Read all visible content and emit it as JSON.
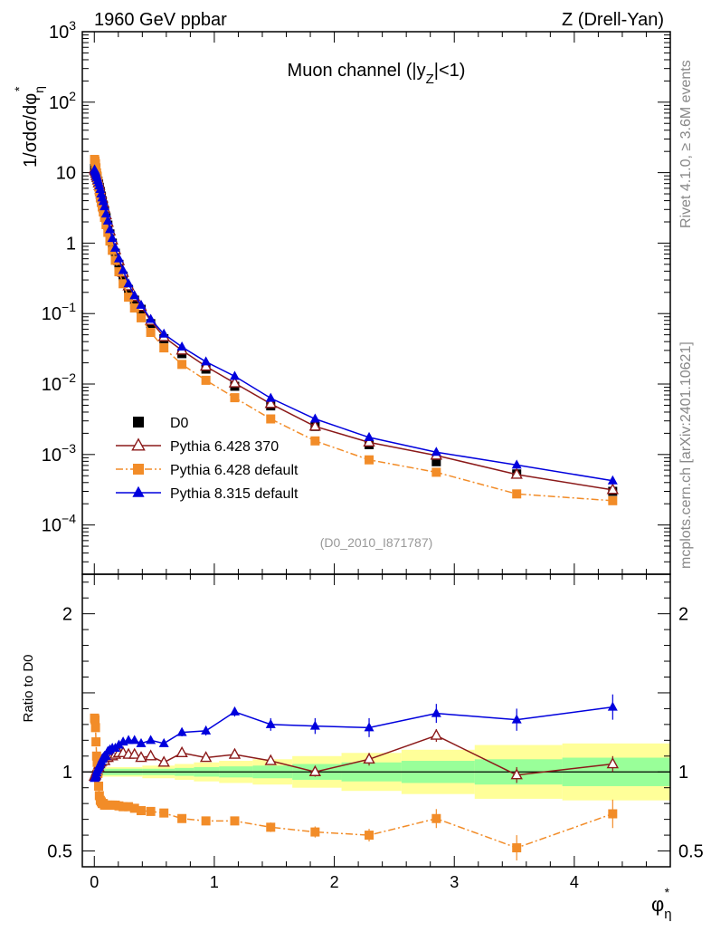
{
  "header": {
    "left": "1960 GeV ppbar",
    "right": "Z (Drell-Yan)"
  },
  "side_labels": {
    "rivet": "Rivet 4.1.0, ≥ 3.6M events",
    "mcplots": "mcplots.cern.ch [arXiv:2401.10621]"
  },
  "chart_data": {
    "type": "line",
    "title": "Muon channel (|y_Z|<1)",
    "analysis_id": "(D0_2010_I871787)",
    "xlabel": "φ*_η",
    "ylabel_main": "1/σdσ/dφ*_η",
    "ylabel_ratio": "Ratio to D0",
    "xlim": [
      -0.1,
      4.8
    ],
    "ylim_main": [
      2e-05,
      1000
    ],
    "yscale_main": "log",
    "ylim_ratio": [
      0.4,
      2.25
    ],
    "x_ticks": [
      "0",
      "1",
      "2",
      "3",
      "4"
    ],
    "y_ticks_main": [
      {
        "value": 1000,
        "label": "10^3"
      },
      {
        "value": 100,
        "label": "10^2"
      },
      {
        "value": 10,
        "label": "10"
      },
      {
        "value": 1,
        "label": "1"
      },
      {
        "value": 0.1,
        "label": "10^−1"
      },
      {
        "value": 0.01,
        "label": "10^−2"
      },
      {
        "value": 0.001,
        "label": "10^−3"
      },
      {
        "value": 0.0001,
        "label": "10^−4"
      }
    ],
    "y_ticks_ratio": [
      {
        "value": 0.5,
        "label": "0.5"
      },
      {
        "value": 1,
        "label": "1"
      },
      {
        "value": 2,
        "label": "2"
      }
    ],
    "x": [
      0.002,
      0.006,
      0.01,
      0.014,
      0.019,
      0.024,
      0.03,
      0.036,
      0.042,
      0.05,
      0.058,
      0.066,
      0.075,
      0.085,
      0.098,
      0.113,
      0.13,
      0.15,
      0.175,
      0.205,
      0.24,
      0.285,
      0.335,
      0.39,
      0.47,
      0.58,
      0.73,
      0.93,
      1.17,
      1.47,
      1.84,
      2.29,
      2.85,
      3.52,
      4.32
    ],
    "series": [
      {
        "name": "D0",
        "style": "data",
        "color": "#000000",
        "marker": "filled-square",
        "values": [
          11.5,
          11.0,
          10.5,
          9.8,
          9.0,
          8.4,
          7.6,
          6.9,
          6.2,
          5.4,
          4.65,
          4.0,
          3.45,
          2.9,
          2.3,
          1.8,
          1.35,
          1.0,
          0.72,
          0.5,
          0.34,
          0.22,
          0.155,
          0.115,
          0.072,
          0.044,
          0.027,
          0.0163,
          0.0093,
          0.0049,
          0.0025,
          0.00138,
          0.00079,
          0.00053,
          0.0003
        ]
      },
      {
        "name": "Pythia 6.428 370",
        "style": "solid",
        "color": "#8b1a1a",
        "marker": "open-triangle",
        "values": [
          11.2,
          10.75,
          10.3,
          9.7,
          9.0,
          8.5,
          7.8,
          7.1,
          6.5,
          5.7,
          4.95,
          4.3,
          3.7,
          3.1,
          2.5,
          1.96,
          1.48,
          1.1,
          0.8,
          0.56,
          0.38,
          0.245,
          0.172,
          0.125,
          0.079,
          0.0465,
          0.0301,
          0.0178,
          0.0103,
          0.00525,
          0.0025,
          0.00149,
          0.00097,
          0.00052,
          0.000315
        ]
      },
      {
        "name": "Pythia 6.428 default",
        "style": "dashdot",
        "color": "#f28c28",
        "marker": "filled-square",
        "values": [
          15.4,
          14.6,
          13.4,
          11.7,
          9.9,
          8.9,
          7.5,
          6.3,
          5.3,
          4.45,
          3.8,
          3.25,
          2.77,
          2.31,
          1.83,
          1.42,
          1.07,
          0.79,
          0.57,
          0.392,
          0.265,
          0.171,
          0.12,
          0.087,
          0.054,
          0.0326,
          0.019,
          0.0113,
          0.0064,
          0.0032,
          0.00156,
          0.00084,
          0.00056,
          0.000276,
          0.000221
        ]
      },
      {
        "name": "Pythia 8.315 default",
        "style": "solid",
        "color": "#0000dd",
        "marker": "filled-triangle",
        "values": [
          11.0,
          10.6,
          10.2,
          9.6,
          9.0,
          8.5,
          7.8,
          7.2,
          6.5,
          5.8,
          5.0,
          4.4,
          3.9,
          3.3,
          2.6,
          2.07,
          1.56,
          1.17,
          0.85,
          0.6,
          0.41,
          0.265,
          0.18,
          0.132,
          0.083,
          0.0513,
          0.0337,
          0.0207,
          0.0129,
          0.0063,
          0.0032,
          0.00175,
          0.00108,
          0.00071,
          0.000425
        ]
      }
    ],
    "ratio_series": [
      {
        "name": "Pythia 6.428 370",
        "values": [
          0.97,
          0.975,
          0.98,
          0.99,
          1.0,
          1.01,
          1.03,
          1.03,
          1.05,
          1.06,
          1.065,
          1.075,
          1.08,
          1.07,
          1.09,
          1.09,
          1.1,
          1.1,
          1.11,
          1.12,
          1.12,
          1.11,
          1.11,
          1.09,
          1.1,
          1.06,
          1.12,
          1.09,
          1.11,
          1.07,
          1.0,
          1.08,
          1.23,
          0.98,
          1.05
        ],
        "errors": [
          0.01,
          0.01,
          0.01,
          0.01,
          0.01,
          0.01,
          0.01,
          0.01,
          0.01,
          0.01,
          0.01,
          0.01,
          0.01,
          0.01,
          0.01,
          0.01,
          0.01,
          0.01,
          0.01,
          0.01,
          0.01,
          0.01,
          0.01,
          0.01,
          0.01,
          0.01,
          0.015,
          0.015,
          0.02,
          0.025,
          0.03,
          0.04,
          0.04,
          0.05,
          0.05
        ]
      },
      {
        "name": "Pythia 6.428 default",
        "values": [
          1.34,
          1.33,
          1.28,
          1.19,
          1.1,
          1.06,
          0.99,
          0.91,
          0.85,
          0.82,
          0.81,
          0.8,
          0.8,
          0.79,
          0.79,
          0.79,
          0.79,
          0.79,
          0.79,
          0.785,
          0.78,
          0.78,
          0.77,
          0.755,
          0.75,
          0.74,
          0.705,
          0.69,
          0.69,
          0.65,
          0.62,
          0.6,
          0.705,
          0.52,
          0.735
        ],
        "errors": [
          0.01,
          0.01,
          0.01,
          0.01,
          0.01,
          0.01,
          0.01,
          0.01,
          0.01,
          0.01,
          0.01,
          0.01,
          0.01,
          0.01,
          0.01,
          0.01,
          0.01,
          0.01,
          0.01,
          0.01,
          0.01,
          0.01,
          0.01,
          0.01,
          0.01,
          0.01,
          0.015,
          0.02,
          0.025,
          0.03,
          0.035,
          0.04,
          0.06,
          0.08,
          0.09
        ]
      },
      {
        "name": "Pythia 8.315 default",
        "values": [
          0.96,
          0.965,
          0.97,
          0.98,
          0.995,
          1.01,
          1.02,
          1.03,
          1.04,
          1.05,
          1.065,
          1.08,
          1.09,
          1.1,
          1.1,
          1.13,
          1.14,
          1.15,
          1.15,
          1.17,
          1.19,
          1.2,
          1.2,
          1.18,
          1.2,
          1.18,
          1.25,
          1.26,
          1.38,
          1.3,
          1.29,
          1.28,
          1.37,
          1.33,
          1.41
        ],
        "errors": [
          0.01,
          0.01,
          0.01,
          0.01,
          0.01,
          0.01,
          0.01,
          0.01,
          0.01,
          0.01,
          0.01,
          0.01,
          0.01,
          0.01,
          0.01,
          0.01,
          0.01,
          0.01,
          0.01,
          0.01,
          0.01,
          0.01,
          0.01,
          0.01,
          0.02,
          0.02,
          0.025,
          0.03,
          0.03,
          0.04,
          0.05,
          0.06,
          0.06,
          0.07,
          0.08
        ]
      }
    ],
    "uncertainty_bands": [
      {
        "x_lo": 0.0,
        "x_hi": 0.4,
        "inner": 0.02,
        "outer": 0.03
      },
      {
        "x_lo": 0.4,
        "x_hi": 0.67,
        "inner": 0.02,
        "outer": 0.04
      },
      {
        "x_lo": 0.67,
        "x_hi": 0.83,
        "inner": 0.025,
        "outer": 0.05
      },
      {
        "x_lo": 0.83,
        "x_hi": 1.04,
        "inner": 0.03,
        "outer": 0.06
      },
      {
        "x_lo": 1.04,
        "x_hi": 1.32,
        "inner": 0.035,
        "outer": 0.07
      },
      {
        "x_lo": 1.32,
        "x_hi": 1.65,
        "inner": 0.04,
        "outer": 0.08
      },
      {
        "x_lo": 1.65,
        "x_hi": 2.06,
        "inner": 0.05,
        "outer": 0.1
      },
      {
        "x_lo": 2.06,
        "x_hi": 2.56,
        "inner": 0.06,
        "outer": 0.12
      },
      {
        "x_lo": 2.56,
        "x_hi": 3.17,
        "inner": 0.07,
        "outer": 0.14
      },
      {
        "x_lo": 3.17,
        "x_hi": 3.9,
        "inner": 0.08,
        "outer": 0.17
      },
      {
        "x_lo": 3.9,
        "x_hi": 4.8,
        "inner": 0.09,
        "outer": 0.18
      }
    ],
    "legend_position": "bottom-left",
    "colors": {
      "band_inner": "#99ff99",
      "band_outer": "#ffff99"
    }
  }
}
